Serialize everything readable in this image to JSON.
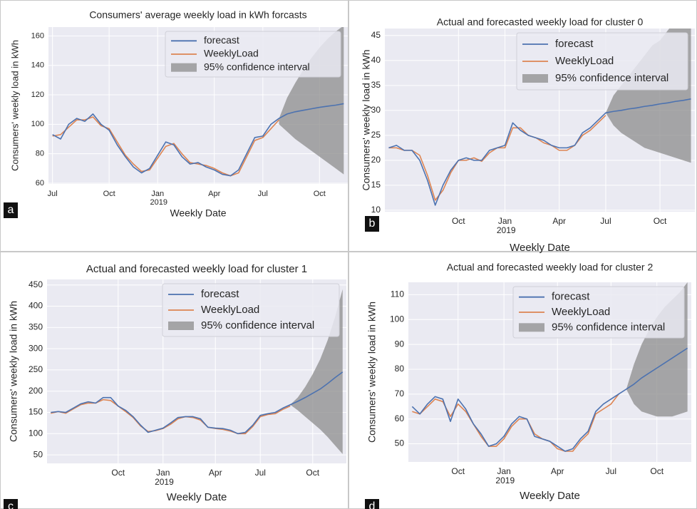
{
  "chart_data": [
    {
      "type": "line",
      "title": "Consumers' average weekly load in kWh forcasts",
      "xlabel": "Weekly Date",
      "ylabel": "Consumers' weekly load in kWh",
      "panel_label": "a",
      "categories": [
        "Jul",
        null,
        null,
        null,
        null,
        null,
        null,
        "Oct",
        null,
        null,
        null,
        null,
        null,
        "Jan 2019",
        null,
        null,
        null,
        null,
        null,
        null,
        "Apr",
        null,
        null,
        null,
        null,
        null,
        "Jul",
        null,
        null,
        null,
        null,
        null,
        null,
        "Oct",
        null,
        null,
        null
      ],
      "ylim": [
        59.5,
        166
      ],
      "yticks": [
        60,
        80,
        100,
        120,
        140,
        160
      ],
      "grid": true,
      "legend": "upper right",
      "series": [
        {
          "name": "forecast",
          "color": "#4c72b0",
          "values": [
            93,
            90,
            100,
            104,
            102,
            107,
            100,
            96,
            86,
            78,
            71,
            67,
            70,
            79,
            88,
            86,
            78,
            73,
            74,
            71,
            69,
            66,
            65,
            69,
            80,
            91,
            92,
            100,
            104,
            107,
            108.5,
            109.5,
            110.5,
            111.5,
            112.3,
            113,
            114
          ]
        },
        {
          "name": "WeeklyLoad",
          "color": "#dd8452",
          "values": [
            92,
            93,
            98,
            103,
            103,
            105,
            99,
            97,
            88,
            79,
            73,
            68,
            69,
            77,
            85,
            87,
            80,
            74,
            73,
            72,
            70,
            67,
            65,
            67,
            78,
            89,
            91,
            97,
            103,
            null,
            null,
            null,
            null,
            null,
            null,
            null,
            null
          ]
        },
        {
          "name": "95% confidence interval",
          "color": "#8c8c8c",
          "lower": [
            null,
            null,
            null,
            null,
            null,
            null,
            null,
            null,
            null,
            null,
            null,
            null,
            null,
            null,
            null,
            null,
            null,
            null,
            null,
            null,
            null,
            null,
            null,
            null,
            null,
            null,
            null,
            null,
            100,
            95,
            90,
            86,
            82,
            78,
            74,
            70,
            66
          ],
          "upper": [
            null,
            null,
            null,
            null,
            null,
            null,
            null,
            null,
            null,
            null,
            null,
            null,
            null,
            null,
            null,
            null,
            null,
            null,
            null,
            null,
            null,
            null,
            null,
            null,
            null,
            null,
            null,
            null,
            104,
            118,
            128,
            137,
            145,
            152,
            158,
            163,
            167
          ]
        }
      ]
    },
    {
      "type": "line",
      "title": "Actual and forecasted weekly load for cluster 0",
      "xlabel": "Weekly Date",
      "ylabel": "Consumers' weekly load in kWh",
      "panel_label": "b",
      "categories": [
        null,
        null,
        null,
        null,
        null,
        null,
        null,
        null,
        null,
        "Oct",
        null,
        null,
        null,
        null,
        null,
        "Jan 2019",
        null,
        null,
        null,
        null,
        null,
        null,
        "Apr",
        null,
        null,
        null,
        null,
        null,
        "Jul",
        null,
        null,
        null,
        null,
        null,
        null,
        "Oct",
        null,
        null,
        null,
        null
      ],
      "ylim": [
        9.7,
        46.4
      ],
      "yticks": [
        10,
        15,
        20,
        25,
        30,
        35,
        40,
        45
      ],
      "grid": true,
      "legend": "upper right",
      "series": [
        {
          "name": "forecast",
          "color": "#4c72b0",
          "values": [
            22.5,
            23,
            22,
            22,
            20,
            16,
            11,
            15,
            18,
            20,
            20.5,
            20,
            20,
            22,
            22.5,
            23,
            27.5,
            26,
            25,
            24.5,
            24,
            23,
            22.5,
            22.5,
            23,
            25.5,
            26.5,
            28,
            29.5,
            29.8,
            30,
            30.3,
            30.5,
            30.8,
            31,
            31.3,
            31.5,
            31.8,
            32,
            32.3
          ]
        },
        {
          "name": "WeeklyLoad",
          "color": "#dd8452",
          "values": [
            22.5,
            22.5,
            22,
            22,
            21,
            17,
            12,
            14,
            17.5,
            20,
            20,
            20.5,
            19.8,
            21.5,
            22.5,
            22.5,
            26.5,
            26.5,
            25,
            24.5,
            23.5,
            23,
            22,
            22,
            23,
            25,
            26,
            27.5,
            29,
            null,
            null,
            null,
            null,
            null,
            null,
            null,
            null,
            null,
            null,
            null
          ]
        },
        {
          "name": "95% confidence interval",
          "color": "#8c8c8c",
          "lower": [
            null,
            null,
            null,
            null,
            null,
            null,
            null,
            null,
            null,
            null,
            null,
            null,
            null,
            null,
            null,
            null,
            null,
            null,
            null,
            null,
            null,
            null,
            null,
            null,
            null,
            null,
            null,
            null,
            29.5,
            27,
            25.5,
            24.5,
            23.5,
            22.5,
            22,
            21.5,
            21,
            20.5,
            20,
            19.5
          ],
          "upper": [
            null,
            null,
            null,
            null,
            null,
            null,
            null,
            null,
            null,
            null,
            null,
            null,
            null,
            null,
            null,
            null,
            null,
            null,
            null,
            null,
            null,
            null,
            null,
            null,
            null,
            null,
            null,
            null,
            29.5,
            33,
            35,
            37,
            39,
            41,
            43,
            44,
            46,
            48,
            50,
            52
          ]
        }
      ]
    },
    {
      "type": "line",
      "title": "Actual and forecasted weekly load for cluster 1",
      "xlabel": "Weekly Date",
      "ylabel": "Consumers' weekly load in kWh",
      "panel_label": "c",
      "categories": [
        null,
        null,
        null,
        null,
        null,
        null,
        null,
        null,
        null,
        "Oct",
        null,
        null,
        null,
        null,
        null,
        "Jan 2019",
        null,
        null,
        null,
        null,
        null,
        null,
        "Apr",
        null,
        null,
        null,
        null,
        null,
        "Jul",
        null,
        null,
        null,
        null,
        null,
        null,
        "Oct",
        null,
        null,
        null,
        null
      ],
      "ylim": [
        30,
        463
      ],
      "yticks": [
        50,
        100,
        150,
        200,
        250,
        300,
        350,
        400,
        450
      ],
      "grid": true,
      "legend": "upper right",
      "series": [
        {
          "name": "forecast",
          "color": "#4c72b0",
          "values": [
            150,
            152,
            150,
            160,
            170,
            175,
            172,
            185,
            185,
            165,
            155,
            140,
            120,
            103,
            108,
            113,
            125,
            138,
            140,
            140,
            135,
            115,
            113,
            112,
            108,
            100,
            103,
            120,
            143,
            147,
            150,
            160,
            168,
            176,
            185,
            195,
            205,
            218,
            232,
            245
          ]
        },
        {
          "name": "WeeklyLoad",
          "color": "#dd8452",
          "values": [
            148,
            152,
            148,
            158,
            168,
            172,
            172,
            180,
            178,
            165,
            152,
            138,
            118,
            105,
            107,
            112,
            122,
            135,
            140,
            138,
            132,
            115,
            112,
            110,
            106,
            100,
            100,
            117,
            140,
            145,
            147,
            157,
            165,
            null,
            null,
            null,
            null,
            null,
            null,
            null
          ]
        },
        {
          "name": "95% confidence interval",
          "color": "#8c8c8c",
          "lower": [
            null,
            null,
            null,
            null,
            null,
            null,
            null,
            null,
            null,
            null,
            null,
            null,
            null,
            null,
            null,
            null,
            null,
            null,
            null,
            null,
            null,
            null,
            null,
            null,
            null,
            null,
            null,
            null,
            null,
            null,
            null,
            null,
            168,
            155,
            140,
            125,
            110,
            92,
            72,
            52
          ],
          "upper": [
            null,
            null,
            null,
            null,
            null,
            null,
            null,
            null,
            null,
            null,
            null,
            null,
            null,
            null,
            null,
            null,
            null,
            null,
            null,
            null,
            null,
            null,
            null,
            null,
            null,
            null,
            null,
            null,
            null,
            null,
            null,
            null,
            168,
            185,
            210,
            240,
            275,
            320,
            375,
            440
          ]
        }
      ]
    },
    {
      "type": "line",
      "title": "Actual and forecasted weekly load for cluster 2",
      "xlabel": "Weekly Date",
      "ylabel": "Consumers' weekly load in kWh",
      "panel_label": "d",
      "categories": [
        null,
        null,
        null,
        null,
        null,
        null,
        "Oct",
        null,
        null,
        null,
        null,
        null,
        "Jan 2019",
        null,
        null,
        null,
        null,
        null,
        null,
        "Apr",
        null,
        null,
        null,
        null,
        null,
        null,
        "Jul",
        null,
        null,
        null,
        null,
        null,
        "Oct",
        null,
        null,
        null,
        null
      ],
      "ylim": [
        42.7,
        115
      ],
      "yticks": [
        50,
        60,
        70,
        80,
        90,
        100,
        110
      ],
      "grid": true,
      "legend": "upper right",
      "series": [
        {
          "name": "forecast",
          "color": "#4c72b0",
          "values": [
            65,
            62,
            66,
            69,
            68,
            59,
            68,
            64,
            58,
            54,
            49,
            50,
            53,
            58,
            61,
            60,
            53,
            52,
            51,
            49,
            47,
            48,
            52,
            55,
            63,
            66,
            68,
            70,
            72,
            74,
            76.5,
            78.5,
            80.5,
            82.5,
            84.5,
            86.5,
            88.5
          ]
        },
        {
          "name": "WeeklyLoad",
          "color": "#dd8452",
          "values": [
            63,
            62,
            65,
            68,
            67,
            61,
            66,
            63,
            58,
            53,
            49,
            49,
            52,
            57,
            60,
            60,
            54,
            52,
            51,
            48,
            47,
            47,
            51,
            54,
            62,
            64,
            66,
            70,
            null,
            null,
            null,
            null,
            null,
            null,
            null,
            null,
            null
          ]
        },
        {
          "name": "95% confidence interval",
          "color": "#8c8c8c",
          "lower": [
            null,
            null,
            null,
            null,
            null,
            null,
            null,
            null,
            null,
            null,
            null,
            null,
            null,
            null,
            null,
            null,
            null,
            null,
            null,
            null,
            null,
            null,
            null,
            null,
            null,
            null,
            null,
            null,
            72,
            66,
            63,
            62,
            61,
            61,
            61,
            62,
            63
          ],
          "upper": [
            null,
            null,
            null,
            null,
            null,
            null,
            null,
            null,
            null,
            null,
            null,
            null,
            null,
            null,
            null,
            null,
            null,
            null,
            null,
            null,
            null,
            null,
            null,
            null,
            null,
            null,
            null,
            null,
            72,
            82,
            90,
            96,
            101,
            105,
            108,
            111,
            115
          ]
        }
      ]
    }
  ]
}
